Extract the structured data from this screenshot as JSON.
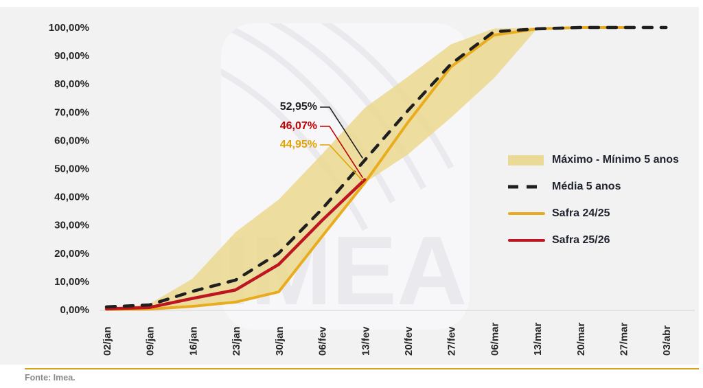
{
  "watermark": {
    "text": "IMEA"
  },
  "footer": {
    "source": "Fonte: Imea."
  },
  "colors": {
    "chart_background": "#F2F2F2",
    "band_fill": "#EBDA95",
    "media_dashed": "#1F1F1F",
    "safra_2425_line": "#E8AC1E",
    "safra_2526_line": "#BE1621",
    "annotation_black": "#1F1F1F",
    "annotation_red": "#C00000",
    "annotation_gold": "#E2A300",
    "axis_line": "#DEDEDE",
    "tick_text": "#262626",
    "separator_gold": "#D7A21E",
    "watermark_glyph": "#E9E9EE"
  },
  "legend": {
    "items": [
      {
        "label": "Máximo - Mínimo 5 anos",
        "swatch": "band"
      },
      {
        "label": "Média 5 anos",
        "swatch": "dashed"
      },
      {
        "label": "Safra 24/25",
        "swatch": "gold-line"
      },
      {
        "label": "Safra 25/26",
        "swatch": "red-line"
      }
    ]
  },
  "annotations": [
    {
      "text": "52,95%",
      "series": "Média 5 anos",
      "date": "13/fev",
      "value": 52.95,
      "color_key": "annotation_black"
    },
    {
      "text": "46,07%",
      "series": "Safra 25/26",
      "date": "13/fev",
      "value": 46.07,
      "color_key": "annotation_red"
    },
    {
      "text": "44,95%",
      "series": "Safra 24/25",
      "date": "13/fev",
      "value": 44.95,
      "color_key": "annotation_gold"
    }
  ],
  "axis": {
    "y_tick_labels": [
      "100,00%",
      "90,00%",
      "80,00%",
      "70,00%",
      "60,00%",
      "50,00%",
      "40,00%",
      "30,00%",
      "20,00%",
      "10,00%",
      "0,00%"
    ],
    "y_tick_values": [
      100,
      90,
      80,
      70,
      60,
      50,
      40,
      30,
      20,
      10,
      0
    ]
  },
  "chart_data": {
    "type": "area+line",
    "title": "",
    "xlabel": "",
    "ylabel": "",
    "ylim": [
      0,
      100
    ],
    "grid": false,
    "legend_position": "right",
    "categories": [
      "02/jan",
      "09/jan",
      "16/jan",
      "23/jan",
      "30/jan",
      "06/fev",
      "13/fev",
      "20/fev",
      "27/fev",
      "06/mar",
      "13/mar",
      "20/mar",
      "27/mar",
      "03/abr"
    ],
    "series": [
      {
        "name": "Máximo 5 anos (topo da banda)",
        "role": "band_max",
        "values": [
          0.3,
          2,
          11,
          27.5,
          39,
          55,
          71.5,
          82.5,
          94,
          99.6,
          100,
          100,
          100,
          100
        ]
      },
      {
        "name": "Mínimo 5 anos (base da banda)",
        "role": "band_min",
        "values": [
          0.1,
          0.2,
          1.2,
          2.7,
          6.3,
          25.8,
          44.95,
          55,
          68,
          82,
          99.5,
          100,
          100,
          100
        ]
      },
      {
        "name": "Média 5 anos",
        "role": "dashed",
        "values": [
          1,
          1.7,
          6.5,
          10.5,
          20,
          35.5,
          52.95,
          70.5,
          87,
          98.5,
          99.5,
          100,
          100,
          100
        ]
      },
      {
        "name": "Safra 24/25",
        "role": "gold",
        "values": [
          0.1,
          0.2,
          1.2,
          2.7,
          6.3,
          25.8,
          44.95,
          66.3,
          86,
          97.3,
          99.5,
          100,
          100,
          null
        ]
      },
      {
        "name": "Safra 25/26",
        "role": "red",
        "values": [
          0.3,
          0.8,
          4,
          7,
          16,
          31.5,
          46.07,
          null,
          null,
          null,
          null,
          null,
          null,
          null
        ]
      }
    ]
  }
}
